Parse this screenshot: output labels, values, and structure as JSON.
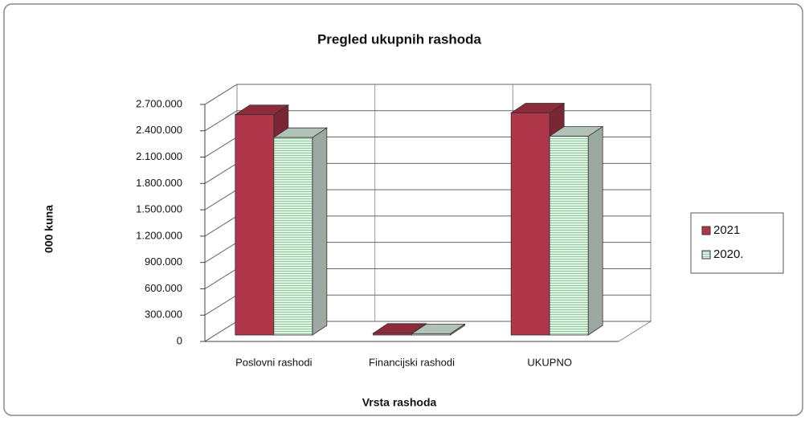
{
  "chart_data": {
    "type": "bar3d",
    "title": "Pregled ukupnih rashoda",
    "x_label": "Vrsta rashoda",
    "y_label": "000 kuna",
    "categories": [
      "Poslovni rashodi",
      "Financijski rashodi",
      "UKUPNO"
    ],
    "series": [
      {
        "name": "2021",
        "color": "#b0364a",
        "values": [
          2510000,
          20000,
          2530000
        ]
      },
      {
        "name": "2020.",
        "color": "#dff2e4",
        "values": [
          2250000,
          15000,
          2265000
        ]
      }
    ],
    "ylim": [
      0,
      2700000
    ],
    "yticks": [
      0,
      {
        "value": 300000,
        "label": "300.000"
      },
      {
        "value": 600000,
        "label": "600.000"
      },
      {
        "value": 900000,
        "label": "900.000"
      },
      {
        "value": 1200000,
        "label": "1.200.000"
      },
      {
        "value": 1500000,
        "label": "1.500.000"
      },
      {
        "value": 1800000,
        "label": "1.800.000"
      },
      {
        "value": 2100000,
        "label": "2.100.000"
      },
      {
        "value": 2400000,
        "label": "2.400.000"
      },
      {
        "value": 2700000,
        "label": "2.700.000"
      }
    ],
    "grid": true,
    "legend": "right"
  }
}
